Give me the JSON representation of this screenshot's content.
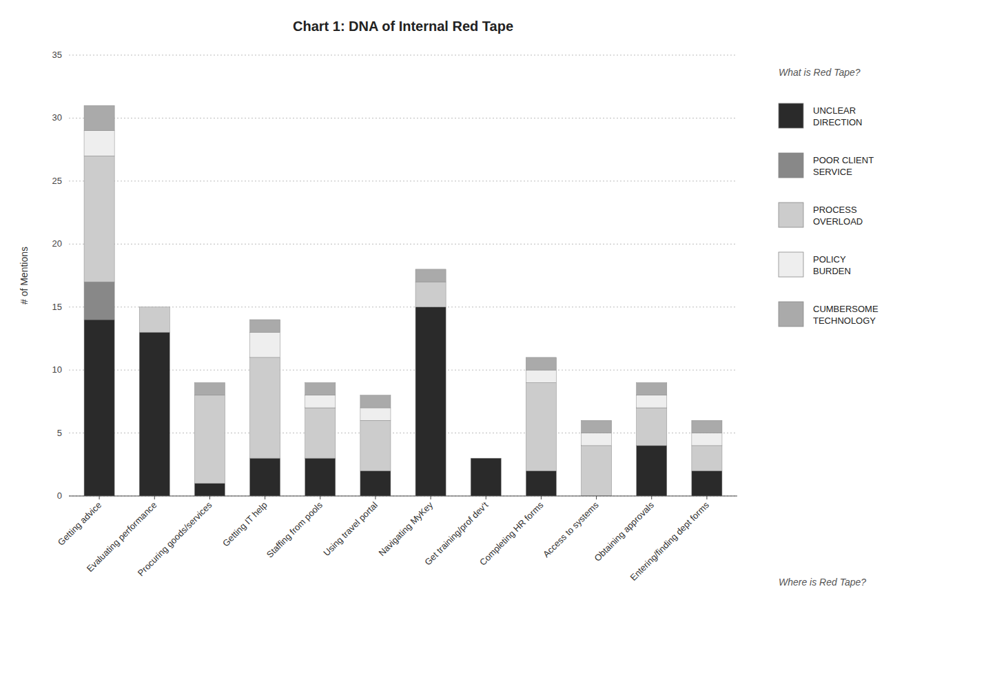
{
  "chart_data": {
    "type": "bar",
    "stacked": true,
    "title": "Chart 1: DNA of Internal Red Tape",
    "ylabel": "# of Mentions",
    "annotations": [
      "What is Red Tape?",
      "Where is Red Tape?"
    ],
    "categories": [
      "Getting advice",
      "Evaluating performance",
      "Procuring goods/services",
      "Getting IT help",
      "Staffing from pools",
      "Using travel portal",
      "Navigating MyKey",
      "Get training/prof dev't",
      "Completing HR forms",
      "Access to systems",
      "Obtaining approvals",
      "Entering/finding dept forms"
    ],
    "series": [
      {
        "name": "UNCLEAR\nDIRECTION",
        "color": "#2a2a2a",
        "values": [
          14,
          13,
          1,
          3,
          3,
          2,
          15,
          3,
          2,
          0,
          4,
          2
        ]
      },
      {
        "name": "POOR CLIENT\nSERVICE",
        "color": "#888888",
        "values": [
          3,
          0,
          0,
          0,
          0,
          0,
          0,
          0,
          0,
          0,
          0,
          0
        ]
      },
      {
        "name": "PROCESS\nOVERLOAD",
        "color": "#cccccc",
        "values": [
          10,
          2,
          7,
          8,
          4,
          4,
          2,
          0,
          7,
          4,
          3,
          2
        ]
      },
      {
        "name": "POLICY\nBURDEN",
        "color": "#eeeeee",
        "values": [
          2,
          0,
          0,
          2,
          1,
          1,
          0,
          0,
          1,
          1,
          1,
          1
        ]
      },
      {
        "name": "CUMBERSOME\nTECHNOLOGY",
        "color": "#aaaaaa",
        "values": [
          2,
          0,
          1,
          1,
          1,
          1,
          1,
          0,
          1,
          1,
          1,
          1
        ]
      }
    ],
    "ylim": [
      0,
      35
    ],
    "yticks": [
      0,
      5,
      10,
      15,
      20,
      25,
      30,
      35
    ],
    "grid": true,
    "legend": "right"
  }
}
